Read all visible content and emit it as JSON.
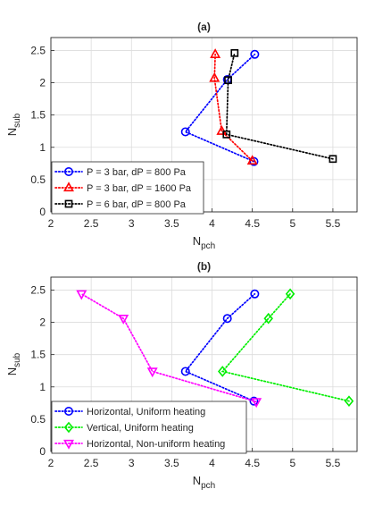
{
  "chart_data": [
    {
      "type": "line",
      "title": "(a)",
      "xlabel": {
        "base": "N",
        "sub": "pch"
      },
      "ylabel": {
        "base": "N",
        "sub": "sub"
      },
      "xlim": [
        2,
        5.8
      ],
      "ylim": [
        0,
        2.7
      ],
      "xticks": [
        2,
        2.5,
        3,
        3.5,
        4,
        4.5,
        5,
        5.5
      ],
      "yticks": [
        0,
        0.5,
        1,
        1.5,
        2,
        2.5
      ],
      "grid": true,
      "legend_position": "bottom-left",
      "series": [
        {
          "name": "P = 3 bar, dP = 800 Pa",
          "color": "#0000ff",
          "marker": "circle",
          "x": [
            4.52,
            3.67,
            4.19,
            4.53
          ],
          "y": [
            0.78,
            1.24,
            2.05,
            2.44
          ]
        },
        {
          "name": "P = 3 bar, dP = 1600 Pa",
          "color": "#ff0000",
          "marker": "triangle-up",
          "x": [
            4.5,
            4.12,
            4.03,
            4.04
          ],
          "y": [
            0.79,
            1.25,
            2.07,
            2.44
          ]
        },
        {
          "name": "P = 6 bar, dP = 800 Pa",
          "color": "#000000",
          "marker": "square",
          "x": [
            5.5,
            4.18,
            4.2,
            4.28
          ],
          "y": [
            0.82,
            1.2,
            2.04,
            2.46
          ]
        }
      ]
    },
    {
      "type": "line",
      "title": "(b)",
      "xlabel": {
        "base": "N",
        "sub": "pch"
      },
      "ylabel": {
        "base": "N",
        "sub": "sub"
      },
      "xlim": [
        2,
        5.8
      ],
      "ylim": [
        0,
        2.7
      ],
      "xticks": [
        2,
        2.5,
        3,
        3.5,
        4,
        4.5,
        5,
        5.5
      ],
      "yticks": [
        0,
        0.5,
        1,
        1.5,
        2,
        2.5
      ],
      "grid": true,
      "legend_position": "bottom-left",
      "series": [
        {
          "name": "Horizontal, Uniform heating",
          "color": "#0000ff",
          "marker": "circle",
          "x": [
            4.52,
            3.67,
            4.19,
            4.53
          ],
          "y": [
            0.78,
            1.24,
            2.06,
            2.44
          ]
        },
        {
          "name": "Vertical, Uniform heating",
          "color": "#00ee00",
          "marker": "diamond",
          "x": [
            5.7,
            4.13,
            4.7,
            4.97
          ],
          "y": [
            0.78,
            1.24,
            2.06,
            2.44
          ]
        },
        {
          "name": "Horizontal, Non-uniform heating",
          "color": "#ff00ff",
          "marker": "triangle-down",
          "x": [
            4.55,
            3.26,
            2.9,
            2.38
          ],
          "y": [
            0.77,
            1.24,
            2.06,
            2.44
          ]
        }
      ]
    }
  ]
}
